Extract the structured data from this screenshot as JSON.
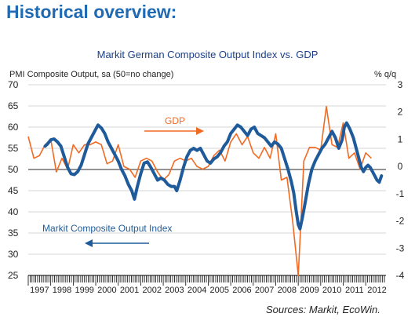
{
  "heading": "Historical overview:",
  "source": "Sources: Markit, EcoWin.",
  "colors": {
    "pmi": "#1f5b9a",
    "gdp": "#f26a22",
    "heading": "#1f6ab3",
    "title": "#1a3f8a"
  },
  "chart_data": {
    "type": "line",
    "title": "Markit German Composite Output Index vs. GDP",
    "ylabel_left": "PMI Composite Output, sa (50=no change)",
    "ylabel_right": "% q/q",
    "ylim_left": [
      25,
      70
    ],
    "ylim_right": [
      -4,
      3
    ],
    "yticks_left": [
      25,
      30,
      35,
      40,
      45,
      50,
      55,
      60,
      65,
      70
    ],
    "yticks_right": [
      -4,
      -3,
      -2,
      -1,
      0,
      1,
      2,
      3
    ],
    "xlim": [
      1997.0,
      2012.9
    ],
    "x_tick_labels": [
      "1997",
      "1998",
      "1999",
      "2000",
      "2001",
      "2002",
      "2003",
      "2004",
      "2005",
      "2006",
      "2007",
      "2008",
      "2009",
      "2010",
      "2011",
      "2012"
    ],
    "grid": "horizontal",
    "reference_line_left": 50,
    "series": [
      {
        "name": "Markit Composite Output Index",
        "axis": "left",
        "annotation_position": "lower-left",
        "points": [
          [
            1997.75,
            55.5
          ],
          [
            1997.85,
            56.0
          ],
          [
            1998.0,
            57.0
          ],
          [
            1998.15,
            57.2
          ],
          [
            1998.3,
            56.5
          ],
          [
            1998.45,
            55.5
          ],
          [
            1998.6,
            53.0
          ],
          [
            1998.75,
            50.5
          ],
          [
            1998.9,
            49.0
          ],
          [
            1999.05,
            48.8
          ],
          [
            1999.2,
            49.5
          ],
          [
            1999.35,
            51.0
          ],
          [
            1999.5,
            53.5
          ],
          [
            1999.65,
            56.0
          ],
          [
            1999.8,
            57.5
          ],
          [
            1999.95,
            59.0
          ],
          [
            2000.1,
            60.5
          ],
          [
            2000.25,
            59.8
          ],
          [
            2000.4,
            58.5
          ],
          [
            2000.55,
            56.5
          ],
          [
            2000.7,
            55.0
          ],
          [
            2000.85,
            53.5
          ],
          [
            2001.0,
            52.0
          ],
          [
            2001.15,
            50.0
          ],
          [
            2001.3,
            48.5
          ],
          [
            2001.45,
            46.5
          ],
          [
            2001.6,
            45.0
          ],
          [
            2001.72,
            43.0
          ],
          [
            2001.85,
            46.0
          ],
          [
            2002.0,
            49.0
          ],
          [
            2002.15,
            51.5
          ],
          [
            2002.3,
            51.8
          ],
          [
            2002.45,
            50.5
          ],
          [
            2002.6,
            49.0
          ],
          [
            2002.75,
            47.5
          ],
          [
            2002.9,
            48.0
          ],
          [
            2003.05,
            47.5
          ],
          [
            2003.2,
            46.5
          ],
          [
            2003.35,
            46.0
          ],
          [
            2003.5,
            46.0
          ],
          [
            2003.6,
            45.0
          ],
          [
            2003.75,
            47.5
          ],
          [
            2003.9,
            50.5
          ],
          [
            2004.05,
            53.0
          ],
          [
            2004.2,
            54.5
          ],
          [
            2004.35,
            55.0
          ],
          [
            2004.5,
            54.5
          ],
          [
            2004.65,
            55.0
          ],
          [
            2004.8,
            53.5
          ],
          [
            2004.95,
            52.0
          ],
          [
            2005.1,
            51.5
          ],
          [
            2005.25,
            52.5
          ],
          [
            2005.4,
            53.0
          ],
          [
            2005.55,
            54.0
          ],
          [
            2005.7,
            55.5
          ],
          [
            2005.85,
            56.5
          ],
          [
            2006.0,
            58.5
          ],
          [
            2006.15,
            59.5
          ],
          [
            2006.3,
            60.5
          ],
          [
            2006.45,
            60.0
          ],
          [
            2006.6,
            59.0
          ],
          [
            2006.75,
            58.0
          ],
          [
            2006.9,
            59.5
          ],
          [
            2007.05,
            60.0
          ],
          [
            2007.2,
            58.5
          ],
          [
            2007.35,
            58.0
          ],
          [
            2007.5,
            57.5
          ],
          [
            2007.65,
            56.5
          ],
          [
            2007.8,
            55.5
          ],
          [
            2007.95,
            56.5
          ],
          [
            2008.1,
            56.0
          ],
          [
            2008.25,
            55.0
          ],
          [
            2008.4,
            52.5
          ],
          [
            2008.55,
            50.0
          ],
          [
            2008.7,
            47.0
          ],
          [
            2008.8,
            44.5
          ],
          [
            2008.9,
            40.5
          ],
          [
            2009.0,
            37.0
          ],
          [
            2009.08,
            36.0
          ],
          [
            2009.18,
            38.5
          ],
          [
            2009.3,
            42.0
          ],
          [
            2009.45,
            46.5
          ],
          [
            2009.6,
            50.0
          ],
          [
            2009.75,
            52.0
          ],
          [
            2009.9,
            53.5
          ],
          [
            2010.05,
            55.0
          ],
          [
            2010.2,
            56.0
          ],
          [
            2010.35,
            57.5
          ],
          [
            2010.5,
            59.0
          ],
          [
            2010.65,
            57.5
          ],
          [
            2010.8,
            55.0
          ],
          [
            2010.95,
            57.0
          ],
          [
            2011.05,
            60.0
          ],
          [
            2011.15,
            61.0
          ],
          [
            2011.3,
            59.5
          ],
          [
            2011.45,
            57.5
          ],
          [
            2011.55,
            55.5
          ],
          [
            2011.7,
            52.5
          ],
          [
            2011.8,
            50.5
          ],
          [
            2011.9,
            49.5
          ],
          [
            2012.0,
            50.5
          ],
          [
            2012.1,
            51.0
          ],
          [
            2012.2,
            50.5
          ],
          [
            2012.3,
            49.5
          ],
          [
            2012.4,
            48.5
          ],
          [
            2012.5,
            47.5
          ],
          [
            2012.6,
            47.0
          ],
          [
            2012.7,
            48.5
          ]
        ]
      },
      {
        "name": "GDP",
        "axis": "right",
        "annotation_position": "upper-center",
        "points": [
          [
            1997.0,
            1.1
          ],
          [
            1997.25,
            0.3
          ],
          [
            1997.5,
            0.4
          ],
          [
            1997.75,
            0.8
          ],
          [
            1998.0,
            1.0
          ],
          [
            1998.25,
            -0.2
          ],
          [
            1998.5,
            0.3
          ],
          [
            1998.75,
            -0.1
          ],
          [
            1999.0,
            0.8
          ],
          [
            1999.25,
            0.5
          ],
          [
            1999.5,
            0.8
          ],
          [
            1999.75,
            0.8
          ],
          [
            2000.0,
            0.9
          ],
          [
            2000.25,
            0.8
          ],
          [
            2000.5,
            0.1
          ],
          [
            2000.75,
            0.2
          ],
          [
            2001.0,
            0.8
          ],
          [
            2001.25,
            0.0
          ],
          [
            2001.5,
            -0.1
          ],
          [
            2001.75,
            -0.4
          ],
          [
            2002.0,
            0.2
          ],
          [
            2002.25,
            0.3
          ],
          [
            2002.5,
            0.2
          ],
          [
            2002.75,
            -0.2
          ],
          [
            2003.0,
            -0.5
          ],
          [
            2003.25,
            -0.3
          ],
          [
            2003.5,
            0.2
          ],
          [
            2003.75,
            0.3
          ],
          [
            2004.0,
            0.2
          ],
          [
            2004.25,
            0.3
          ],
          [
            2004.5,
            0.0
          ],
          [
            2004.75,
            -0.1
          ],
          [
            2005.0,
            0.0
          ],
          [
            2005.25,
            0.4
          ],
          [
            2005.5,
            0.6
          ],
          [
            2005.75,
            0.2
          ],
          [
            2006.0,
            0.9
          ],
          [
            2006.25,
            1.2
          ],
          [
            2006.5,
            0.8
          ],
          [
            2006.75,
            1.1
          ],
          [
            2007.0,
            0.5
          ],
          [
            2007.25,
            0.3
          ],
          [
            2007.5,
            0.7
          ],
          [
            2007.75,
            0.3
          ],
          [
            2008.0,
            1.2
          ],
          [
            2008.25,
            -0.5
          ],
          [
            2008.5,
            -0.4
          ],
          [
            2008.75,
            -2.0
          ],
          [
            2009.0,
            -4.0
          ],
          [
            2009.25,
            0.2
          ],
          [
            2009.5,
            0.7
          ],
          [
            2009.75,
            0.7
          ],
          [
            2010.0,
            0.6
          ],
          [
            2010.25,
            2.2
          ],
          [
            2010.5,
            0.8
          ],
          [
            2010.75,
            0.7
          ],
          [
            2011.0,
            1.6
          ],
          [
            2011.25,
            0.3
          ],
          [
            2011.5,
            0.5
          ],
          [
            2011.75,
            -0.1
          ],
          [
            2012.0,
            0.5
          ],
          [
            2012.25,
            0.3
          ]
        ]
      }
    ]
  }
}
